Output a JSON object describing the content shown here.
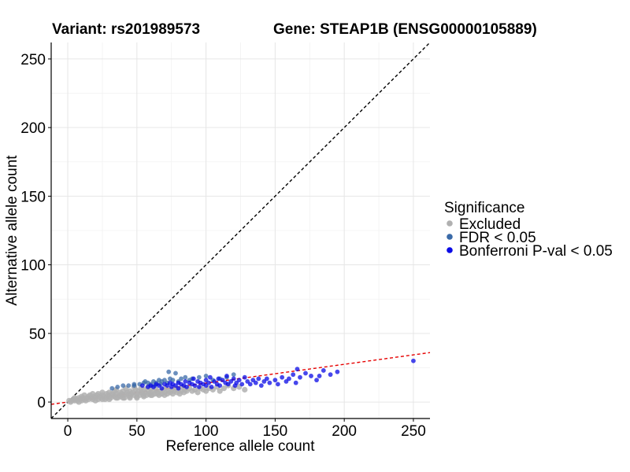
{
  "titles": {
    "variant": "Variant: rs201989573",
    "gene": "Gene: STEAP1B (ENSG00000105889)"
  },
  "chart_data": {
    "type": "scatter",
    "xlabel": "Reference allele count",
    "ylabel": "Alternative allele count",
    "xlim": [
      -12,
      262
    ],
    "ylim": [
      -12,
      262
    ],
    "x_ticks": [
      0,
      50,
      100,
      150,
      200,
      250
    ],
    "y_ticks": [
      0,
      50,
      100,
      150,
      200,
      250
    ],
    "grid": true,
    "legend": {
      "title": "Significance",
      "placement": "right",
      "entries": [
        {
          "label": "Excluded",
          "color": "#b0b0b0"
        },
        {
          "label": "FDR < 0.05",
          "color": "#3a6aa8"
        },
        {
          "label": "Bonferroni P-val < 0.05",
          "color": "#0a0ae6"
        }
      ]
    },
    "reference_lines": [
      {
        "name": "identity",
        "slope": 1,
        "intercept": 0,
        "color": "#000000",
        "style": "dashed"
      },
      {
        "name": "fit",
        "slope": 0.1375,
        "intercept": 0,
        "color": "#e60000",
        "style": "dashed"
      }
    ],
    "series": [
      {
        "name": "Excluded",
        "color": "#b0b0b0",
        "points": [
          [
            1,
            1
          ],
          [
            2,
            0
          ],
          [
            3,
            1
          ],
          [
            4,
            2
          ],
          [
            5,
            1
          ],
          [
            5,
            3
          ],
          [
            6,
            2
          ],
          [
            7,
            1
          ],
          [
            8,
            3
          ],
          [
            8,
            0
          ],
          [
            9,
            2
          ],
          [
            10,
            4
          ],
          [
            10,
            1
          ],
          [
            11,
            3
          ],
          [
            12,
            2
          ],
          [
            12,
            5
          ],
          [
            13,
            1
          ],
          [
            14,
            3
          ],
          [
            15,
            4
          ],
          [
            15,
            2
          ],
          [
            16,
            5
          ],
          [
            17,
            3
          ],
          [
            18,
            2
          ],
          [
            18,
            6
          ],
          [
            19,
            4
          ],
          [
            20,
            3
          ],
          [
            21,
            5
          ],
          [
            22,
            2
          ],
          [
            22,
            6
          ],
          [
            23,
            4
          ],
          [
            24,
            3
          ],
          [
            25,
            5
          ],
          [
            25,
            7
          ],
          [
            26,
            4
          ],
          [
            27,
            2
          ],
          [
            28,
            6
          ],
          [
            28,
            3
          ],
          [
            29,
            5
          ],
          [
            30,
            4
          ],
          [
            30,
            7
          ],
          [
            31,
            3
          ],
          [
            32,
            6
          ],
          [
            33,
            5
          ],
          [
            34,
            4
          ],
          [
            34,
            8
          ],
          [
            35,
            6
          ],
          [
            36,
            3
          ],
          [
            37,
            5
          ],
          [
            38,
            7
          ],
          [
            38,
            4
          ],
          [
            39,
            6
          ],
          [
            40,
            5
          ],
          [
            40,
            8
          ],
          [
            41,
            3
          ],
          [
            42,
            6
          ],
          [
            43,
            7
          ],
          [
            44,
            5
          ],
          [
            45,
            4
          ],
          [
            45,
            8
          ],
          [
            46,
            6
          ],
          [
            47,
            7
          ],
          [
            48,
            5
          ],
          [
            49,
            9
          ],
          [
            50,
            6
          ],
          [
            50,
            4
          ],
          [
            51,
            8
          ],
          [
            52,
            5
          ],
          [
            53,
            7
          ],
          [
            54,
            6
          ],
          [
            55,
            9
          ],
          [
            55,
            4
          ],
          [
            56,
            7
          ],
          [
            57,
            5
          ],
          [
            58,
            8
          ],
          [
            59,
            6
          ],
          [
            60,
            7
          ],
          [
            60,
            10
          ],
          [
            61,
            5
          ],
          [
            62,
            8
          ],
          [
            63,
            6
          ],
          [
            64,
            9
          ],
          [
            65,
            7
          ],
          [
            66,
            5
          ],
          [
            67,
            8
          ],
          [
            68,
            6
          ],
          [
            69,
            9
          ],
          [
            70,
            7
          ],
          [
            71,
            10
          ],
          [
            72,
            6
          ],
          [
            73,
            8
          ],
          [
            74,
            7
          ],
          [
            75,
            9
          ],
          [
            76,
            6
          ],
          [
            77,
            8
          ],
          [
            78,
            10
          ],
          [
            79,
            7
          ],
          [
            80,
            9
          ],
          [
            81,
            6
          ],
          [
            82,
            8
          ],
          [
            83,
            11
          ],
          [
            84,
            7
          ],
          [
            85,
            9
          ],
          [
            86,
            8
          ],
          [
            88,
            10
          ],
          [
            90,
            8
          ],
          [
            92,
            9
          ],
          [
            94,
            7
          ],
          [
            96,
            10
          ],
          [
            98,
            9
          ],
          [
            100,
            8
          ],
          [
            102,
            10
          ],
          [
            105,
            9
          ],
          [
            108,
            11
          ],
          [
            110,
            8
          ],
          [
            113,
            10
          ],
          [
            116,
            12
          ],
          [
            120,
            10
          ],
          [
            124,
            11
          ],
          [
            128,
            9
          ],
          [
            20,
            1
          ],
          [
            25,
            2
          ],
          [
            30,
            2
          ],
          [
            35,
            3
          ],
          [
            40,
            3
          ],
          [
            45,
            3
          ],
          [
            50,
            3
          ],
          [
            55,
            5
          ],
          [
            60,
            5
          ],
          [
            65,
            6
          ],
          [
            70,
            5
          ],
          [
            35,
            9
          ],
          [
            42,
            10
          ],
          [
            48,
            11
          ],
          [
            53,
            10
          ],
          [
            58,
            11
          ]
        ]
      },
      {
        "name": "FDR < 0.05",
        "color": "#3a6aa8",
        "points": [
          [
            32,
            10
          ],
          [
            36,
            11
          ],
          [
            40,
            12
          ],
          [
            44,
            12
          ],
          [
            48,
            13
          ],
          [
            52,
            13
          ],
          [
            55,
            14
          ],
          [
            58,
            14
          ],
          [
            60,
            13
          ],
          [
            62,
            15
          ],
          [
            64,
            14
          ],
          [
            66,
            16
          ],
          [
            68,
            15
          ],
          [
            70,
            16
          ],
          [
            72,
            14
          ],
          [
            73,
            22
          ],
          [
            74,
            17
          ],
          [
            76,
            16
          ],
          [
            78,
            21
          ],
          [
            80,
            15
          ],
          [
            82,
            17
          ],
          [
            85,
            18
          ],
          [
            88,
            16
          ],
          [
            90,
            17
          ],
          [
            95,
            18
          ],
          [
            100,
            19
          ],
          [
            105,
            16
          ],
          [
            110,
            17
          ],
          [
            115,
            18
          ],
          [
            120,
            20
          ],
          [
            48,
            12
          ],
          [
            56,
            15
          ],
          [
            63,
            12
          ],
          [
            67,
            13
          ]
        ]
      },
      {
        "name": "Bonferroni P-val < 0.05",
        "color": "#0a0ae6",
        "points": [
          [
            54,
            12
          ],
          [
            58,
            11
          ],
          [
            60,
            12
          ],
          [
            62,
            11
          ],
          [
            64,
            13
          ],
          [
            66,
            12
          ],
          [
            68,
            10
          ],
          [
            70,
            13
          ],
          [
            72,
            12
          ],
          [
            74,
            14
          ],
          [
            75,
            11
          ],
          [
            76,
            13
          ],
          [
            78,
            12
          ],
          [
            80,
            14
          ],
          [
            80,
            10
          ],
          [
            82,
            13
          ],
          [
            84,
            12
          ],
          [
            85,
            15
          ],
          [
            86,
            11
          ],
          [
            88,
            14
          ],
          [
            90,
            13
          ],
          [
            91,
            17
          ],
          [
            92,
            12
          ],
          [
            94,
            15
          ],
          [
            95,
            11
          ],
          [
            96,
            14
          ],
          [
            98,
            13
          ],
          [
            100,
            16
          ],
          [
            100,
            12
          ],
          [
            102,
            14
          ],
          [
            103,
            18
          ],
          [
            104,
            11
          ],
          [
            106,
            15
          ],
          [
            108,
            13
          ],
          [
            109,
            17
          ],
          [
            110,
            12
          ],
          [
            112,
            16
          ],
          [
            114,
            14
          ],
          [
            115,
            19
          ],
          [
            116,
            13
          ],
          [
            118,
            15
          ],
          [
            120,
            17
          ],
          [
            121,
            12
          ],
          [
            122,
            14
          ],
          [
            124,
            16
          ],
          [
            126,
            13
          ],
          [
            128,
            18
          ],
          [
            130,
            15
          ],
          [
            132,
            13
          ],
          [
            134,
            16
          ],
          [
            136,
            14
          ],
          [
            138,
            17
          ],
          [
            140,
            12
          ],
          [
            142,
            15
          ],
          [
            144,
            17
          ],
          [
            146,
            14
          ],
          [
            150,
            16
          ],
          [
            152,
            13
          ],
          [
            155,
            18
          ],
          [
            158,
            15
          ],
          [
            160,
            17
          ],
          [
            163,
            20
          ],
          [
            165,
            14
          ],
          [
            166,
            24
          ],
          [
            168,
            18
          ],
          [
            172,
            21
          ],
          [
            176,
            19
          ],
          [
            180,
            16
          ],
          [
            182,
            19
          ],
          [
            185,
            23
          ],
          [
            190,
            20
          ],
          [
            195,
            22
          ],
          [
            250,
            30
          ]
        ]
      }
    ]
  }
}
